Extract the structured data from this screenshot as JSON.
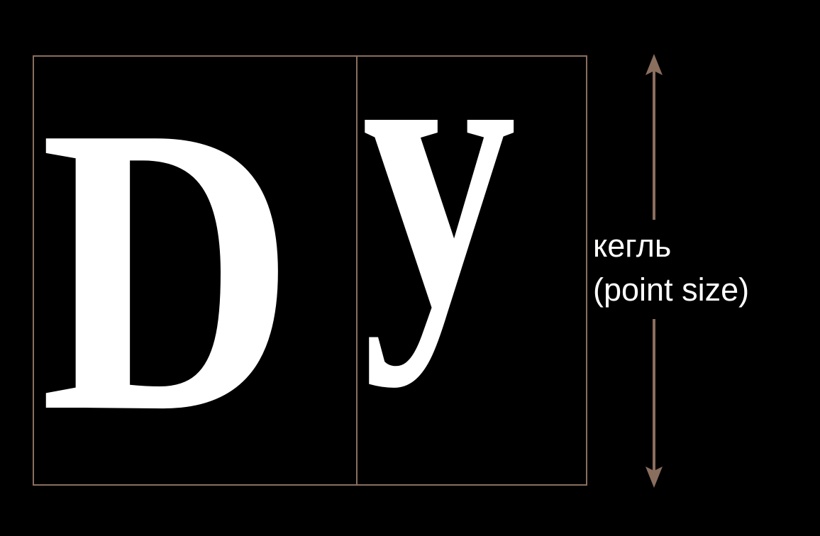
{
  "glyphs": {
    "first": "D",
    "second": "y"
  },
  "label": {
    "line1": "кегль",
    "line2": "(point size)"
  },
  "colors": {
    "background": "#000000",
    "frame": "#8a6e5e",
    "glyph": "#ffffff",
    "label": "#ffffff"
  }
}
